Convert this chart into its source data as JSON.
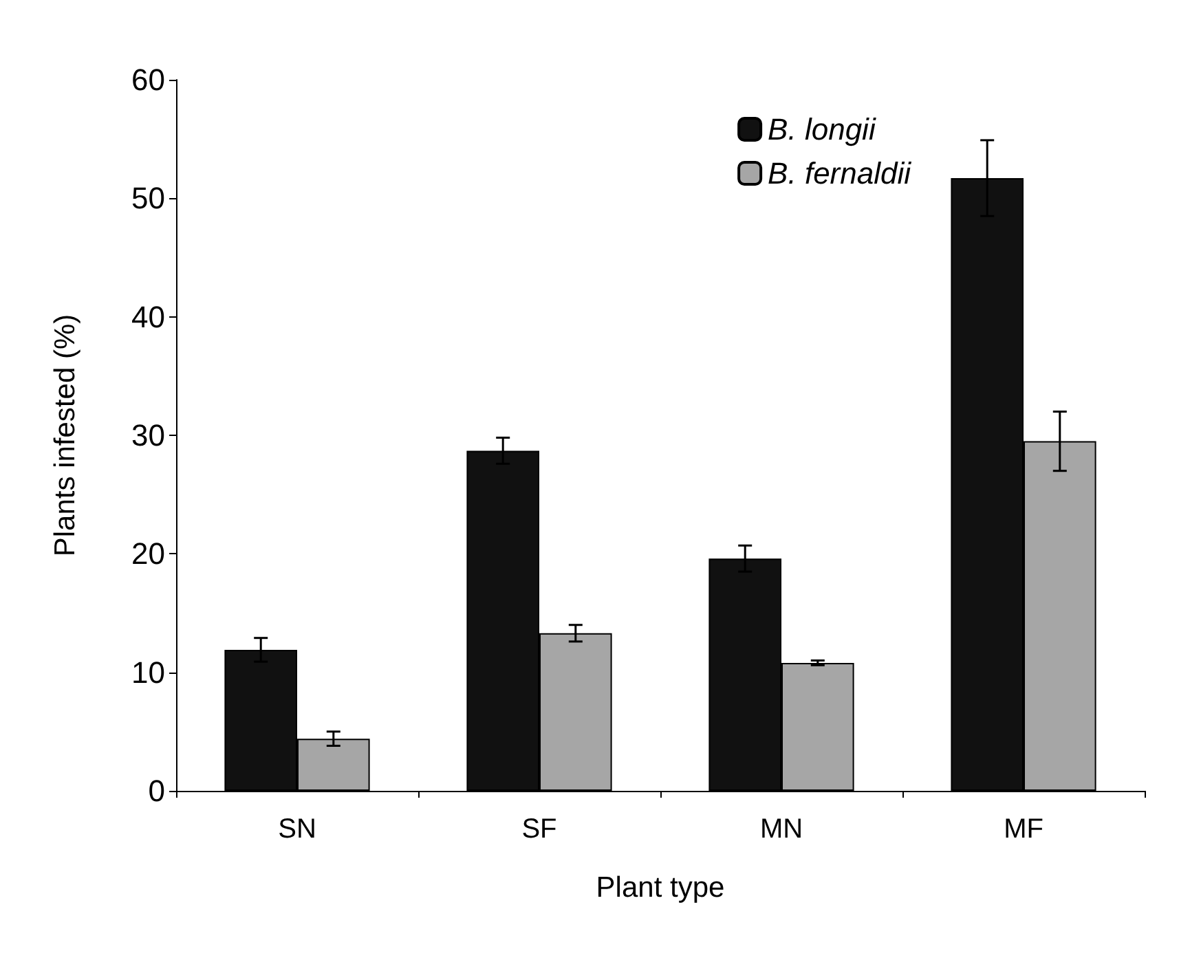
{
  "chart_data": {
    "type": "bar",
    "xlabel": "Plant type",
    "ylabel": "Plants infested (%)",
    "categories": [
      "SN",
      "SF",
      "MN",
      "MF"
    ],
    "series": [
      {
        "name": "B. longii",
        "color": "#111111",
        "values": [
          11.9,
          28.7,
          19.6,
          51.7
        ],
        "errors": [
          1.0,
          1.1,
          1.1,
          3.2
        ]
      },
      {
        "name": "B. fernaldii",
        "color": "#a6a6a6",
        "values": [
          4.4,
          13.3,
          10.8,
          29.5
        ],
        "errors": [
          0.6,
          0.7,
          0.2,
          2.5
        ]
      }
    ],
    "ylim": [
      0,
      60
    ],
    "yticks": [
      0,
      10,
      20,
      30,
      40,
      50,
      60
    ],
    "grid": false,
    "legend": "top right"
  }
}
